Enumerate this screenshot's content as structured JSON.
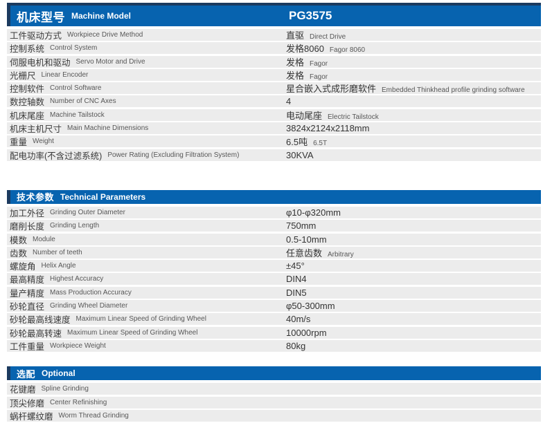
{
  "colors": {
    "header_blue": "#0763af",
    "accent_navy": "#1b3a5f",
    "row_gray": "#ececec",
    "label_text": "#3a3a3a",
    "sub_text": "#575757"
  },
  "tables": [
    {
      "header": {
        "zh": "机床型号",
        "en": "Machine Model",
        "value": "PG3575"
      },
      "rows": [
        {
          "zh": "工件驱动方式",
          "en": "Workpiece Drive Method",
          "value_zh": "直驱",
          "value_en": "Direct Drive"
        },
        {
          "zh": "控制系统",
          "en": "Control System",
          "value_zh": "发格8060",
          "value_en": "Fagor 8060"
        },
        {
          "zh": "伺服电机和驱动",
          "en": "Servo Motor and Drive",
          "value_zh": "发格",
          "value_en": "Fagor"
        },
        {
          "zh": "光栅尺",
          "en": "Linear Encoder",
          "value_zh": "发格",
          "value_en": "Fagor"
        },
        {
          "zh": "控制软件",
          "en": "Control Software",
          "value_zh": "星合嵌入式成形磨软件",
          "value_en": "Embedded Thinkhead profile grinding software"
        },
        {
          "zh": "数控轴数",
          "en": "Number of CNC Axes",
          "value_zh": "4",
          "value_en": ""
        },
        {
          "zh": "机床尾座",
          "en": "Machine Tailstock",
          "value_zh": "电动尾座",
          "value_en": "Electric Tailstock"
        },
        {
          "zh": "机床主机尺寸",
          "en": "Main Machine Dimensions",
          "value_zh": "3824x2124x2118mm",
          "value_en": ""
        },
        {
          "zh": "重量",
          "en": "Weight",
          "value_zh": "6.5吨",
          "value_en": "6.5T"
        },
        {
          "zh": "配电功率(不含过滤系统)",
          "en": "Power Rating (Excluding Filtration System)",
          "value_zh": "30KVA",
          "value_en": ""
        }
      ]
    },
    {
      "header": {
        "zh": "技术参数",
        "en": "Technical Parameters",
        "value": ""
      },
      "rows": [
        {
          "zh": "加工外径",
          "en": "Grinding Outer Diameter",
          "value_zh": "φ10-φ320mm",
          "value_en": ""
        },
        {
          "zh": "磨削长度",
          "en": "Grinding Length",
          "value_zh": "750mm",
          "value_en": ""
        },
        {
          "zh": "模数",
          "en": "Module",
          "value_zh": "0.5-10mm",
          "value_en": ""
        },
        {
          "zh": "齿数",
          "en": "Number of teeth",
          "value_zh": "任意齿数",
          "value_en": "Arbitrary"
        },
        {
          "zh": "螺旋角",
          "en": "Helix Angle",
          "value_zh": "±45°",
          "value_en": ""
        },
        {
          "zh": "最高精度",
          "en": "Highest Accuracy",
          "value_zh": "DIN4",
          "value_en": ""
        },
        {
          "zh": "量产精度",
          "en": "Mass Production Accuracy",
          "value_zh": "DIN5",
          "value_en": ""
        },
        {
          "zh": "砂轮直径",
          "en": "Grinding Wheel Diameter",
          "value_zh": "φ50-300mm",
          "value_en": ""
        },
        {
          "zh": "砂轮最高线速度",
          "en": "Maximum Linear Speed of Grinding Wheel",
          "value_zh": "40m/s",
          "value_en": ""
        },
        {
          "zh": "砂轮最高转速",
          "en": "Maximum Linear Speed of Grinding Wheel",
          "value_zh": "10000rpm",
          "value_en": ""
        },
        {
          "zh": "工件重量",
          "en": "Workpiece Weight",
          "value_zh": "80kg",
          "value_en": ""
        }
      ]
    },
    {
      "header": {
        "zh": "选配",
        "en": "Optional",
        "value": ""
      },
      "rows": [
        {
          "zh": "花键磨",
          "en": "Spline Grinding",
          "value_zh": "",
          "value_en": ""
        },
        {
          "zh": "顶尖修磨",
          "en": "Center Refinishing",
          "value_zh": "",
          "value_en": ""
        },
        {
          "zh": "蜗杆螺纹磨",
          "en": "Worm Thread Grinding",
          "value_zh": "",
          "value_en": ""
        }
      ]
    }
  ]
}
